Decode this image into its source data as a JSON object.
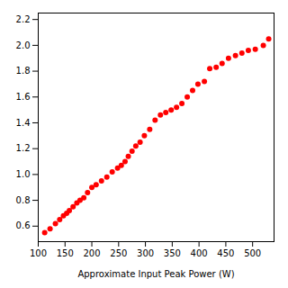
{
  "chart_data": {
    "type": "scatter",
    "xlabel": "Approximate Input Peak Power (W)",
    "x": [
      112,
      122,
      132,
      140,
      147,
      153,
      158,
      165,
      172,
      178,
      185,
      192,
      200,
      208,
      218,
      228,
      238,
      248,
      255,
      262,
      268,
      275,
      282,
      290,
      298,
      308,
      318,
      328,
      338,
      348,
      358,
      368,
      378,
      388,
      398,
      410,
      420,
      432,
      443,
      455,
      468,
      480,
      492,
      505,
      520,
      530
    ],
    "values": [
      0.55,
      0.58,
      0.62,
      0.65,
      0.68,
      0.7,
      0.72,
      0.75,
      0.78,
      0.8,
      0.82,
      0.86,
      0.9,
      0.92,
      0.95,
      0.98,
      1.02,
      1.05,
      1.07,
      1.1,
      1.14,
      1.18,
      1.22,
      1.25,
      1.3,
      1.35,
      1.42,
      1.46,
      1.48,
      1.5,
      1.52,
      1.55,
      1.6,
      1.65,
      1.7,
      1.72,
      1.82,
      1.83,
      1.86,
      1.9,
      1.92,
      1.94,
      1.96,
      1.97,
      2.0,
      2.05
    ],
    "color": "#FF0000",
    "xlim": [
      100,
      540
    ],
    "ylim": [
      0.48,
      2.25
    ],
    "xticks": [
      100,
      150,
      200,
      250,
      300,
      350,
      400,
      450,
      500
    ],
    "yticks": [
      0.6,
      0.8,
      {
        "value": 1,
        "label": "1.0"
      },
      1.2,
      1.4,
      1.6,
      1.8,
      {
        "value": 2,
        "label": "2.0"
      },
      2.2
    ],
    "grid": false
  }
}
